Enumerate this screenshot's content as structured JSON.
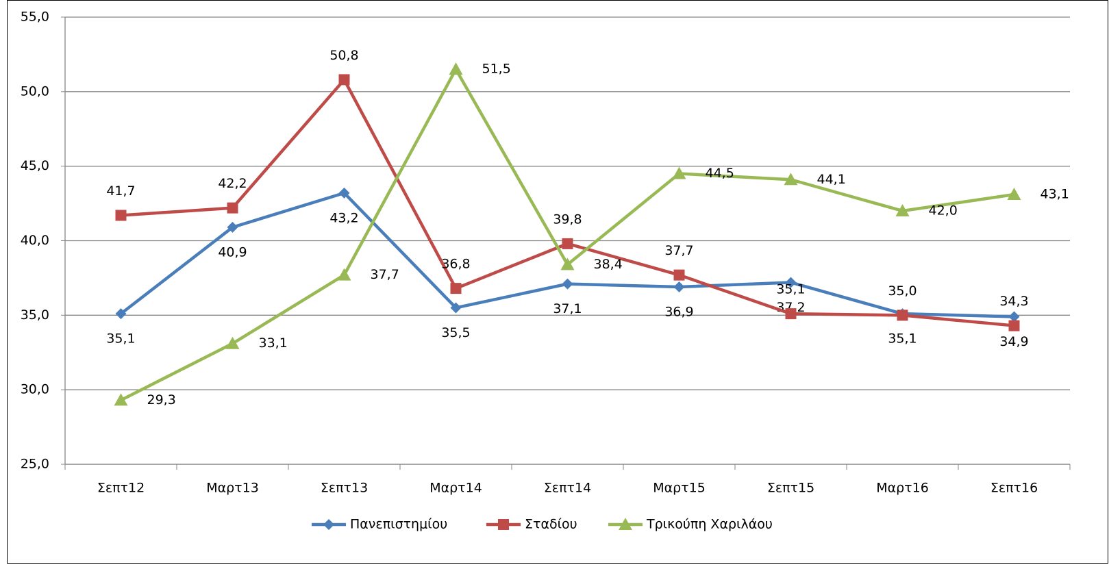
{
  "chart_data": {
    "type": "line",
    "categories": [
      "Σεπτ12",
      "Μαρτ13",
      "Σεπτ13",
      "Μαρτ14",
      "Σεπτ14",
      "Μαρτ15",
      "Σεπτ15",
      "Μαρτ16",
      "Σεπτ16"
    ],
    "series": [
      {
        "name": "Πανεπιστημίου",
        "color": "#4a7ebb",
        "marker": "diamond",
        "values": [
          35.1,
          40.9,
          43.2,
          35.5,
          37.1,
          36.9,
          37.2,
          35.1,
          34.9
        ],
        "value_labels": [
          "35,1",
          "40,9",
          "43,2",
          "35,5",
          "37,1",
          "36,9",
          "37,2",
          "35,1",
          "34,9"
        ]
      },
      {
        "name": "Σταδίου",
        "color": "#be4b48",
        "marker": "square",
        "values": [
          41.7,
          42.2,
          50.8,
          36.8,
          39.8,
          37.7,
          35.1,
          35.0,
          34.3
        ],
        "value_labels": [
          "41,7",
          "42,2",
          "50,8",
          "36,8",
          "39,8",
          "37,7",
          "35,1",
          "35,0",
          "34,3"
        ]
      },
      {
        "name": "Τρικούπη Χαριλάου",
        "color": "#98b954",
        "marker": "triangle",
        "values": [
          29.3,
          33.1,
          37.7,
          51.5,
          38.4,
          44.5,
          44.1,
          42.0,
          43.1
        ],
        "value_labels": [
          "29,3",
          "33,1",
          "37,7",
          "51,5",
          "38,4",
          "44,5",
          "44,1",
          "42,0",
          "43,1"
        ]
      }
    ],
    "ylim": [
      25,
      55
    ],
    "yticks": [
      {
        "value": 25,
        "label": "25,0"
      },
      {
        "value": 30,
        "label": "30,0"
      },
      {
        "value": 35,
        "label": "35,0"
      },
      {
        "value": 40,
        "label": "40,0"
      },
      {
        "value": 45,
        "label": "45,0"
      },
      {
        "value": 50,
        "label": "50,0"
      },
      {
        "value": 55,
        "label": "55,0"
      }
    ],
    "grid": true,
    "legend": "bottom"
  }
}
